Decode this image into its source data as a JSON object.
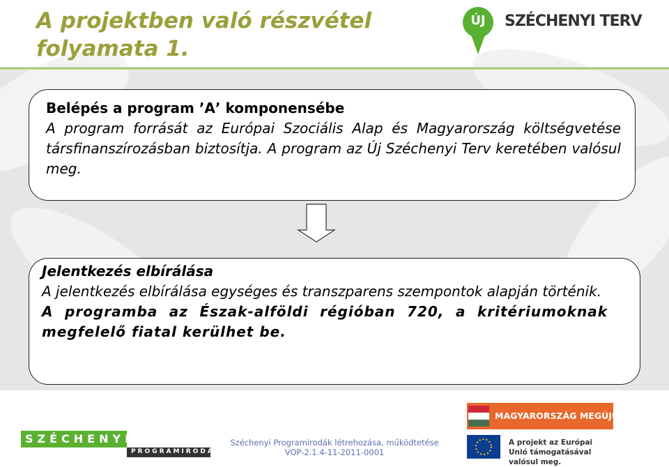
{
  "header": {
    "title_lines": [
      "A projektben való részvétel",
      "folyamata 1."
    ],
    "logo_badge": "ÚJ",
    "logo_text": "SZÉCHENYI TERV"
  },
  "box1": {
    "heading": "Belépés a program ʼAʼ komponensébe",
    "text": "A program forrását az Európai Szociális Alap és Magyarország költségvetése társfinanszírozásban biztosítja. A program az Új Széchenyi Terv keretében valósul meg."
  },
  "box2": {
    "heading": "Jelentkezés elbírálása",
    "text": "A jelentkezés elbírálása egységes és transzparens szempontok alapján történik.",
    "highlight": "A programba az Észak-alföldi régióban 720, a kritériumoknak megfelelő fiatal kerülhet be."
  },
  "footer": {
    "left_logo_top": "SZÉCHENYI",
    "left_logo_bottom": "PROGRAMIRODA",
    "lines": [
      "Széchenyi Programirodák létrehozása, működtetése",
      "VOP-2.1.4-11-2011-0001"
    ],
    "badge": "MAGYARORSZÁG MEGÚJUL",
    "eu_text": "A projekt az Európai Unió támogatásával valósul meg."
  }
}
